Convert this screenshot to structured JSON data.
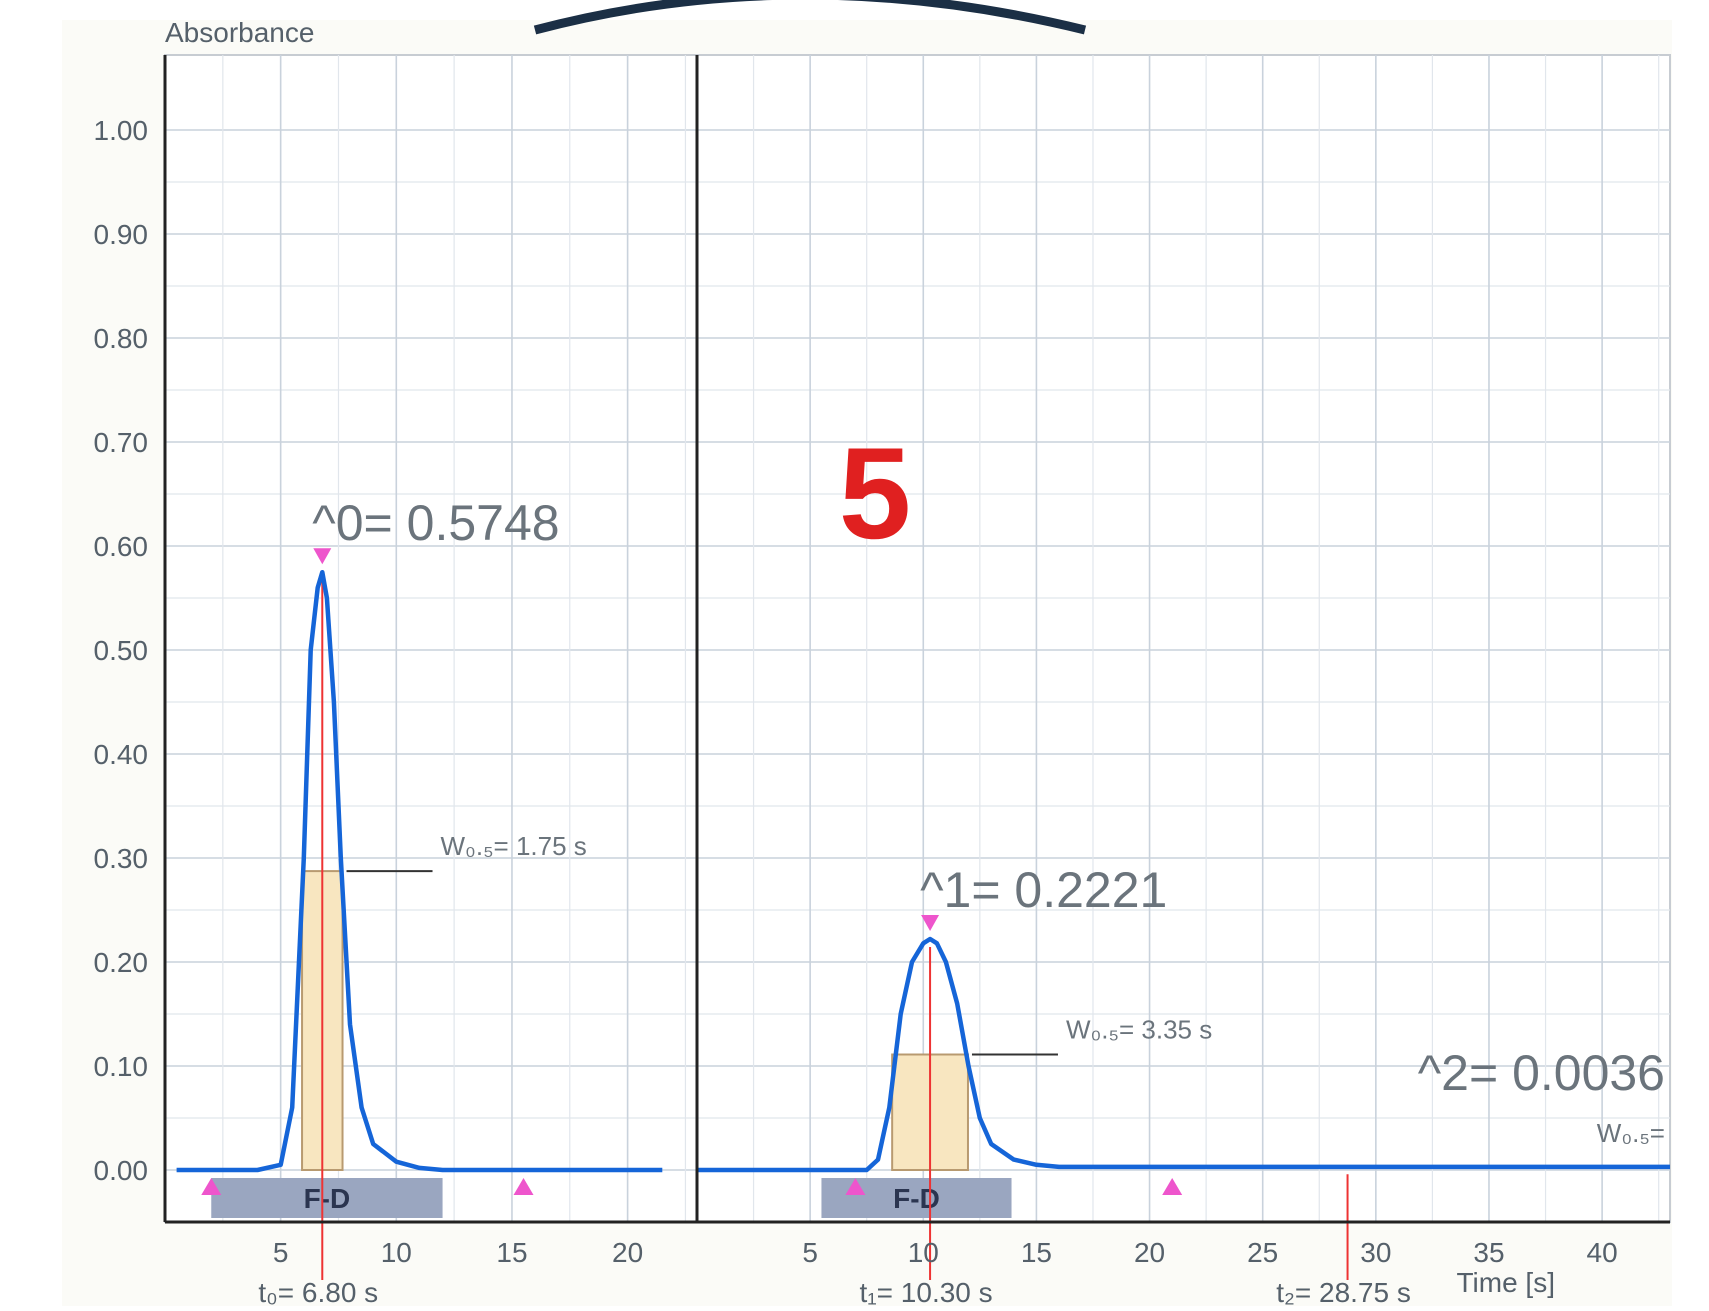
{
  "panel_number": "5",
  "chart_data": {
    "type": "line",
    "ylabel": "Absorbance",
    "xlabel": "Time [s]",
    "ylim": [
      0.0,
      1.05
    ],
    "y_ticks": [
      "0.00",
      "0.10",
      "0.20",
      "0.30",
      "0.40",
      "0.50",
      "0.60",
      "0.70",
      "0.80",
      "0.90",
      "1.00"
    ],
    "grid": true,
    "colors": {
      "trace": "#1565d8",
      "marker": "#ee55cc",
      "red_line": "#ee3333",
      "box_fill": "#f8e6c0",
      "box_edge": "#b89a70",
      "bar": "#9aa6c0",
      "panel_label": "#e02020"
    },
    "panels": [
      {
        "x_ticks": [
          "5",
          "10",
          "15",
          "20"
        ],
        "xlim": [
          0,
          23
        ],
        "band_label": "F-D",
        "peaks": [
          {
            "label": "^0= 0.5748",
            "height": 0.5748,
            "t_label": "t₀= 6.80 s",
            "t": 6.8,
            "w_label": "W₀.₅= 1.75 s",
            "w": 1.75
          }
        ],
        "curve": {
          "x": [
            0.5,
            4.0,
            5.0,
            5.5,
            6.0,
            6.3,
            6.6,
            6.8,
            7.0,
            7.3,
            7.6,
            8.0,
            8.5,
            9.0,
            10.0,
            11.0,
            12.0,
            21.5
          ],
          "y": [
            0.0,
            0.0,
            0.005,
            0.06,
            0.3,
            0.5,
            0.56,
            0.5748,
            0.55,
            0.45,
            0.3,
            0.14,
            0.06,
            0.025,
            0.008,
            0.002,
            0.0,
            0.0
          ]
        }
      },
      {
        "x_ticks": [
          "5",
          "10",
          "15",
          "20",
          "25",
          "30",
          "35",
          "40"
        ],
        "xlim": [
          0,
          43
        ],
        "band_label": "F-D",
        "peaks": [
          {
            "label": "^1= 0.2221",
            "height": 0.2221,
            "t_label": "t₁= 10.30 s",
            "t": 10.3,
            "w_label": "W₀.₅= 3.35 s",
            "w": 3.35
          },
          {
            "label": "^2= 0.0036",
            "height": 0.0036,
            "t_label": "t₂= 28.75 s",
            "t": 28.75,
            "w_label": "W₀.₅=",
            "w": null
          }
        ],
        "curve": {
          "x": [
            0.0,
            7.5,
            8.0,
            8.5,
            9.0,
            9.5,
            10.0,
            10.3,
            10.6,
            11.0,
            11.5,
            12.0,
            12.5,
            13.0,
            14.0,
            15.0,
            16.0,
            30.0,
            43.0
          ],
          "y": [
            0.0,
            0.0,
            0.01,
            0.06,
            0.15,
            0.2,
            0.218,
            0.2221,
            0.218,
            0.2,
            0.16,
            0.1,
            0.05,
            0.025,
            0.01,
            0.005,
            0.003,
            0.003,
            0.003
          ]
        }
      }
    ]
  }
}
